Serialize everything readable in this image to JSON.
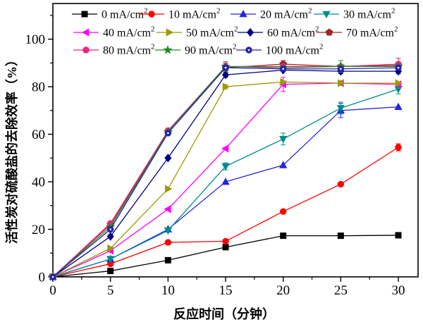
{
  "chart_data": {
    "type": "line",
    "title": "",
    "xlabel": "反应时间（分钟）",
    "ylabel": "活性炭对硫酸盐的去除效率（%）",
    "x": [
      0,
      5,
      10,
      15,
      20,
      25,
      30
    ],
    "xlim": [
      0,
      31.7
    ],
    "ylim": [
      0,
      115
    ],
    "x_ticks": [
      "0",
      "5",
      "10",
      "15",
      "20",
      "25",
      "30"
    ],
    "y_ticks": [
      "0",
      "20",
      "40",
      "60",
      "80",
      "100"
    ],
    "x_minor_ticks": [
      2.5,
      7.5,
      12.5,
      17.5,
      22.5,
      27.5
    ],
    "y_minor_ticks": [
      10,
      30,
      50,
      70,
      90,
      110
    ],
    "grid": false,
    "legend_position": "top-inside",
    "legend_rows": [
      4,
      4,
      3
    ],
    "series": [
      {
        "name": "0 mA/cm²",
        "marker": "square",
        "color": "#000000",
        "values": [
          0,
          2.5,
          7,
          12.5,
          17.3,
          17.3,
          17.5
        ],
        "errors": [
          0,
          0,
          0,
          0,
          0,
          0,
          0
        ]
      },
      {
        "name": "10 mA/cm²",
        "marker": "circle",
        "color": "#fe0000",
        "values": [
          0,
          5.5,
          14.5,
          15,
          27.5,
          39,
          54.5
        ],
        "errors": [
          0,
          0,
          0,
          0,
          0,
          0,
          1.5
        ]
      },
      {
        "name": "20 mA/cm²",
        "marker": "triangle-up",
        "color": "#2424e0",
        "values": [
          0,
          7.5,
          20,
          40,
          47,
          70,
          71.5
        ],
        "errors": [
          0,
          0,
          0,
          0,
          0,
          3,
          0
        ]
      },
      {
        "name": "30 mA/cm²",
        "marker": "triangle-down",
        "color": "#008c8c",
        "values": [
          0,
          7.5,
          19.5,
          46.5,
          58,
          71,
          79
        ],
        "errors": [
          0,
          0,
          0,
          1.5,
          2.5,
          2.5,
          2
        ]
      },
      {
        "name": "40 mA/cm²",
        "marker": "triangle-left",
        "color": "#ff00ff",
        "values": [
          0,
          11,
          28.5,
          54,
          81,
          81.5,
          81
        ],
        "errors": [
          0,
          0,
          0,
          0,
          3,
          1,
          0
        ]
      },
      {
        "name": "50 mA/cm²",
        "marker": "triangle-right",
        "color": "#9a9a00",
        "values": [
          0,
          12,
          37,
          80,
          82,
          81.5,
          81.5
        ],
        "errors": [
          0,
          0,
          0,
          1,
          0,
          1,
          0
        ]
      },
      {
        "name": "60 mA/cm²",
        "marker": "diamond",
        "color": "#000080",
        "values": [
          0,
          17,
          50,
          85,
          87,
          86.5,
          86.5
        ],
        "errors": [
          0,
          0,
          0,
          1,
          0,
          1,
          1
        ]
      },
      {
        "name": "70 mA/cm²",
        "marker": "pentagon",
        "color": "#a0252a",
        "values": [
          0,
          22,
          61,
          88,
          89.5,
          88.5,
          89
        ],
        "errors": [
          0,
          0,
          0,
          1.5,
          1.5,
          0,
          0
        ]
      },
      {
        "name": "80 mA/cm²",
        "marker": "circle",
        "color": "#f1237e",
        "values": [
          0,
          22.5,
          61.5,
          88.5,
          88.5,
          88.5,
          89.5
        ],
        "errors": [
          0,
          0,
          1,
          1.5,
          0,
          0,
          2.5
        ]
      },
      {
        "name": "90 mA/cm²",
        "marker": "star",
        "color": "#1e8e1e",
        "values": [
          0,
          21,
          61,
          88.5,
          88,
          88.5,
          88.5
        ],
        "errors": [
          0,
          0,
          0,
          2,
          0,
          2.5,
          0
        ]
      },
      {
        "name": "100 mA/cm²",
        "marker": "circle-dot",
        "color": "#2424a8",
        "values": [
          0,
          20,
          60.5,
          88,
          87.5,
          87.5,
          88
        ],
        "errors": [
          0,
          0,
          0,
          1,
          1,
          1,
          0
        ]
      }
    ]
  }
}
